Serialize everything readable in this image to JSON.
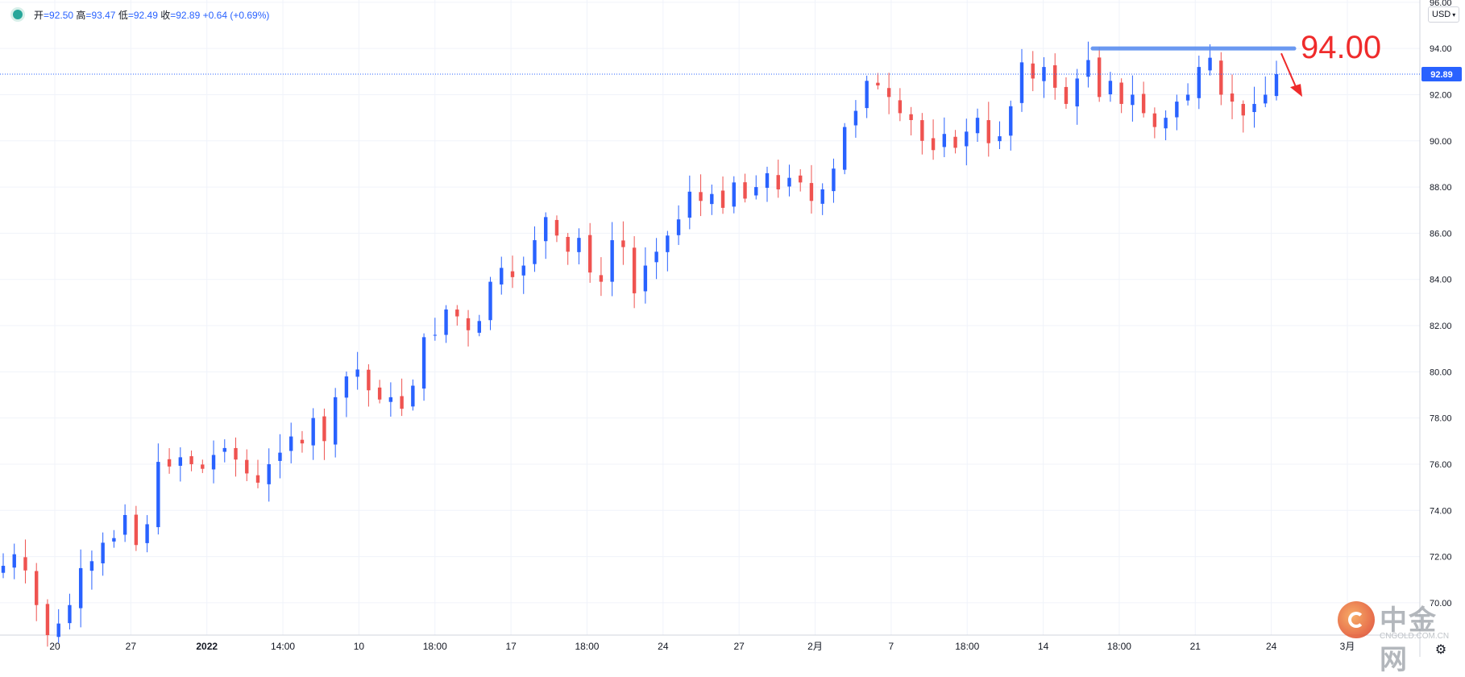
{
  "legend": {
    "open_label": "开",
    "open": "92.50",
    "high_label": "高",
    "high": "93.47",
    "low_label": "低",
    "low": "92.49",
    "close_label": "收",
    "close": "92.89",
    "change": "+0.64",
    "change_pct": "(+0.69%)"
  },
  "currency": "USD",
  "price_tag": "92.89",
  "annotation_label": "94.00",
  "watermark": {
    "title": "中金网",
    "subtitle": "CNGOLD.COM.CN"
  },
  "chart_data": {
    "type": "candlestick",
    "y_axis": {
      "min": 68.6,
      "max": 96.1,
      "ticks": [
        "70.00",
        "72.00",
        "74.00",
        "76.00",
        "78.00",
        "80.00",
        "82.00",
        "84.00",
        "86.00",
        "88.00",
        "90.00",
        "92.00",
        "94.00",
        "96.00"
      ],
      "position": "right"
    },
    "x_axis": {
      "labels": [
        "20",
        "27",
        "2022",
        "14:00",
        "10",
        "18:00",
        "17",
        "18:00",
        "24",
        "27",
        "2月",
        "7",
        "18:00",
        "14",
        "18:00",
        "21",
        "24",
        "3月"
      ]
    },
    "grid": true,
    "last_price": 92.89,
    "colors": {
      "up": "#2962ff",
      "down": "#ef5350",
      "level_line": "#5b8ff0",
      "arrow": "#ef2b2b",
      "price_tag": "#2962ff"
    },
    "resistance_level": 94.0,
    "closes": [
      71.6,
      72.1,
      71.4,
      69.9,
      68.6,
      69.1,
      69.9,
      71.5,
      71.8,
      72.6,
      72.8,
      73.8,
      72.5,
      73.4,
      76.1,
      75.9,
      76.3,
      76.0,
      75.8,
      76.4,
      76.7,
      76.2,
      75.6,
      75.2,
      76.0,
      76.5,
      77.2,
      76.9,
      78.0,
      77.0,
      78.9,
      79.8,
      80.1,
      79.2,
      78.8,
      78.9,
      78.4,
      79.4,
      81.5,
      81.6,
      82.7,
      82.4,
      81.8,
      82.2,
      83.9,
      84.5,
      84.1,
      84.6,
      85.7,
      86.7,
      85.9,
      85.2,
      85.8,
      84.3,
      83.9,
      85.7,
      85.4,
      83.4,
      84.6,
      85.2,
      85.9,
      86.6,
      87.8,
      87.4,
      87.7,
      87.1,
      88.2,
      87.5,
      88.0,
      88.6,
      87.9,
      88.4,
      88.2,
      87.4,
      87.9,
      88.8,
      90.6,
      91.3,
      92.6,
      92.4,
      91.9,
      91.2,
      90.9,
      90.0,
      89.6,
      90.3,
      89.7,
      90.4,
      91.0,
      89.9,
      90.2,
      91.5,
      93.4,
      92.7,
      93.2,
      92.3,
      91.6,
      92.7,
      93.5,
      91.9,
      92.6,
      91.6,
      92.0,
      91.2,
      90.6,
      91.0,
      91.7,
      92.0,
      93.2,
      93.6,
      92.0,
      91.7,
      91.1,
      91.6,
      92.0,
      92.89
    ]
  }
}
